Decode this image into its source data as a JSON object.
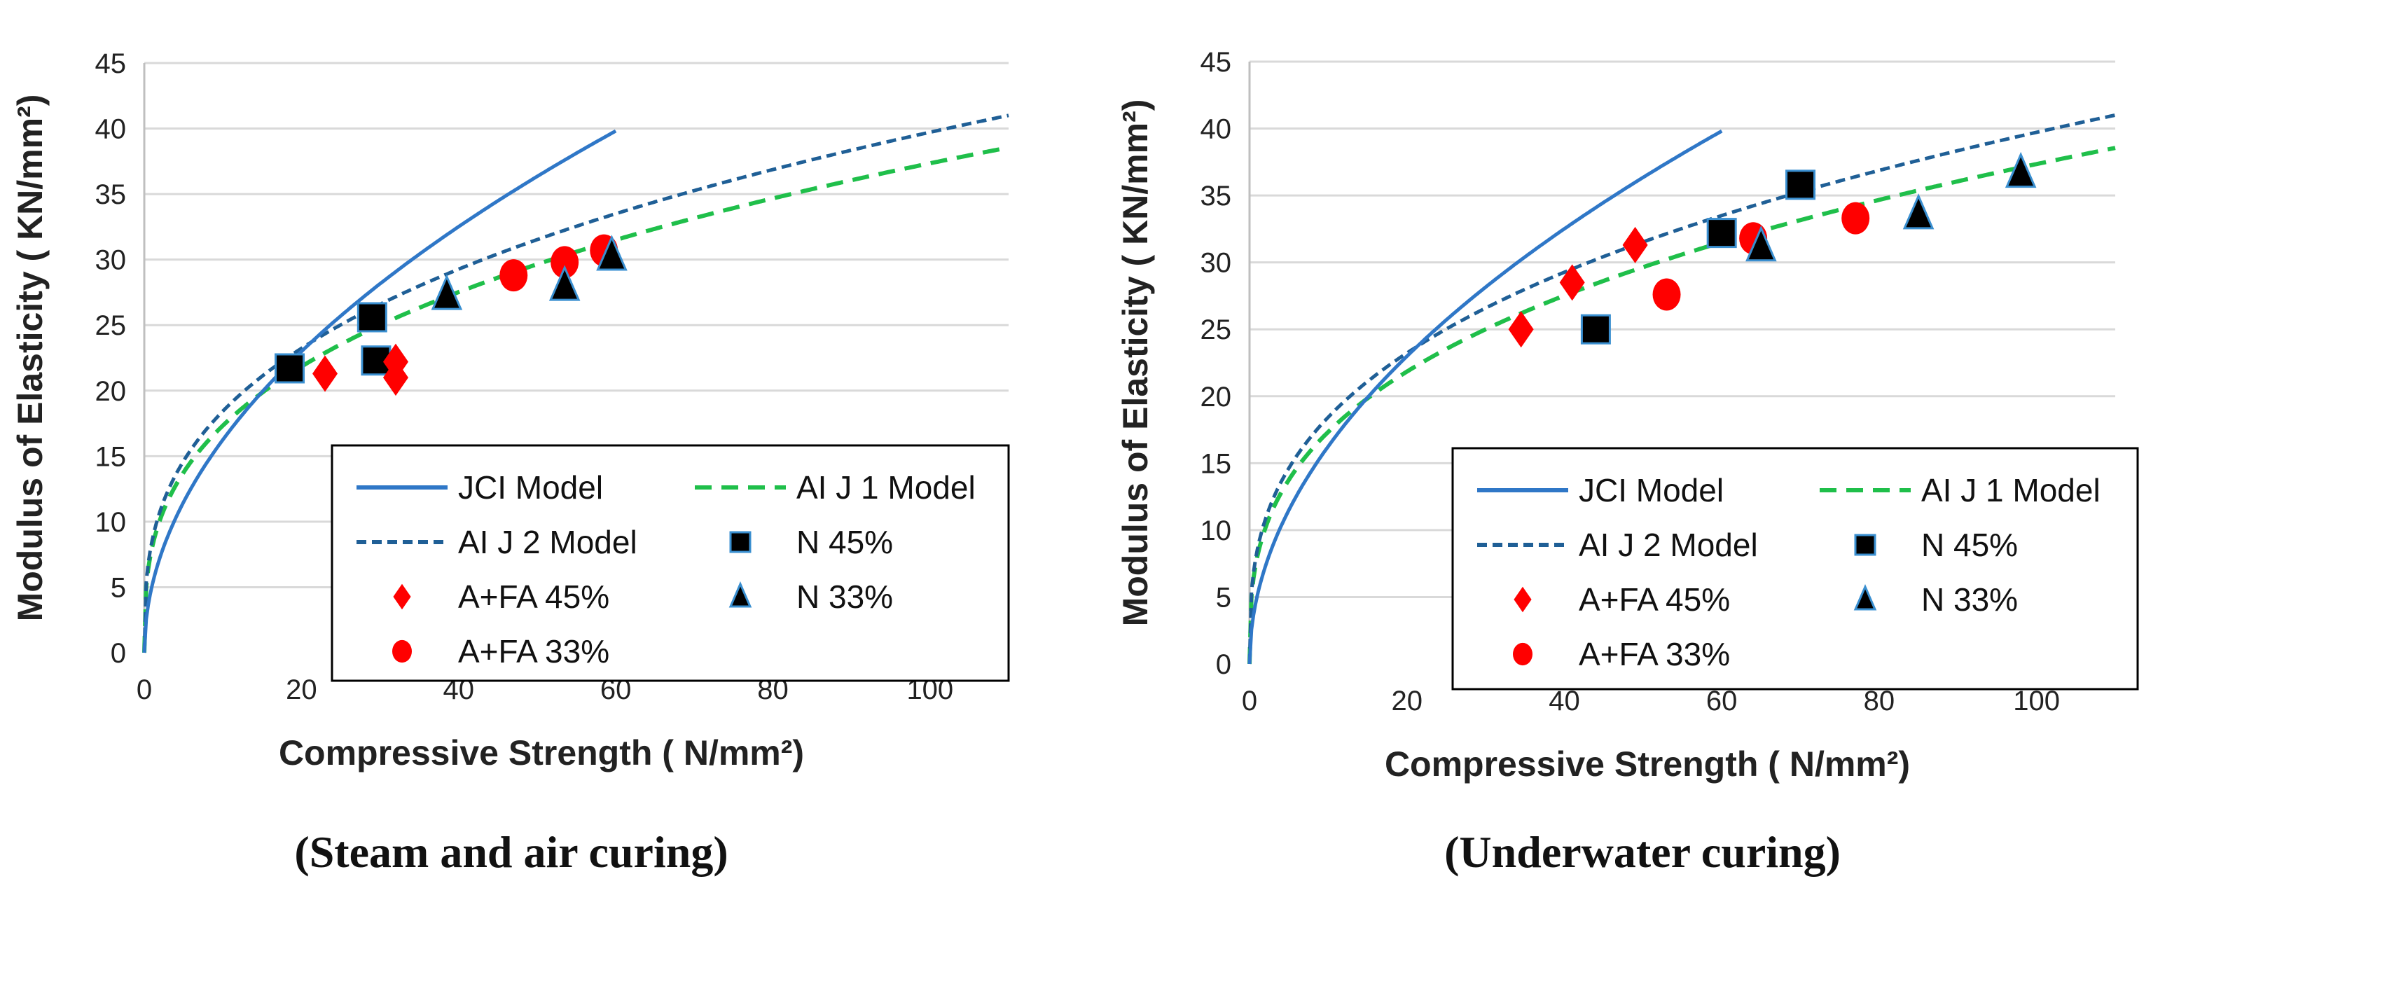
{
  "colors": {
    "jci": "#2f77c7",
    "aij1": "#1fbf4a",
    "aij2": "#1f5f96",
    "red": "#ff0000",
    "black": "#000000",
    "grid": "#d9d9d9"
  },
  "chart_data": [
    {
      "type": "scatter+line",
      "caption": "(Steam and air curing)",
      "xlabel": "Compressive Strength ( N/mm²)",
      "ylabel": "Modulus of Elasticity ( KN/mm²)",
      "xlim": [
        0,
        110
      ],
      "ylim": [
        0,
        45
      ],
      "xticks": [
        "0",
        "20",
        "40",
        "60",
        "80",
        "100"
      ],
      "yticks": [
        "0",
        "5",
        "10",
        "15",
        "20",
        "25",
        "30",
        "35",
        "40",
        "45"
      ],
      "grid": "horizontal",
      "legend_position": "bottom-right",
      "legend": [
        "JCI Model",
        "AI J 1 Model",
        "AI J 2 Model",
        "N 45%",
        "A+FA 45%",
        "N 33%",
        "A+FA 33%"
      ],
      "models": {
        "jci_max_x": 60
      },
      "series": [
        {
          "name": "N 45%",
          "marker": "square",
          "x": [
            18.5,
            29,
            29.5
          ],
          "y": [
            21.7,
            25.6,
            22.3
          ]
        },
        {
          "name": "A+FA 45%",
          "marker": "diamond",
          "x": [
            23,
            32,
            32
          ],
          "y": [
            21.3,
            22.2,
            21.0
          ]
        },
        {
          "name": "A+FA 33%",
          "marker": "circle",
          "x": [
            47,
            53.5,
            58.5
          ],
          "y": [
            28.8,
            29.8,
            30.7
          ]
        },
        {
          "name": "N 33%",
          "marker": "triangle",
          "x": [
            38.5,
            53.5,
            59.5
          ],
          "y": [
            27.3,
            28.0,
            30.3
          ]
        }
      ]
    },
    {
      "type": "scatter+line",
      "caption": "(Underwater curing)",
      "xlabel": "Compressive Strength ( N/mm²)",
      "ylabel": "Modulus of Elasticity ( KN/mm²)",
      "xlim": [
        0,
        110
      ],
      "ylim": [
        0,
        45
      ],
      "xticks": [
        "0",
        "20",
        "40",
        "60",
        "80",
        "100"
      ],
      "yticks": [
        "0",
        "5",
        "10",
        "15",
        "20",
        "25",
        "30",
        "35",
        "40",
        "45"
      ],
      "grid": "horizontal",
      "legend_position": "bottom-right",
      "legend": [
        "JCI Model",
        "AI J 1 Model",
        "AI J 2 Model",
        "N 45%",
        "A+FA 45%",
        "N 33%",
        "A+FA 33%"
      ],
      "models": {
        "jci_max_x": 60
      },
      "series": [
        {
          "name": "N 45%",
          "marker": "square",
          "x": [
            44,
            60,
            70
          ],
          "y": [
            25.0,
            32.2,
            35.8
          ]
        },
        {
          "name": "A+FA 45%",
          "marker": "diamond",
          "x": [
            34.5,
            41,
            49
          ],
          "y": [
            25.0,
            28.5,
            31.3
          ]
        },
        {
          "name": "A+FA 33%",
          "marker": "circle",
          "x": [
            53,
            64,
            77
          ],
          "y": [
            27.6,
            31.8,
            33.3
          ]
        },
        {
          "name": "N 33%",
          "marker": "triangle",
          "x": [
            65,
            85,
            98
          ],
          "y": [
            31.2,
            33.6,
            36.7
          ]
        }
      ]
    }
  ]
}
